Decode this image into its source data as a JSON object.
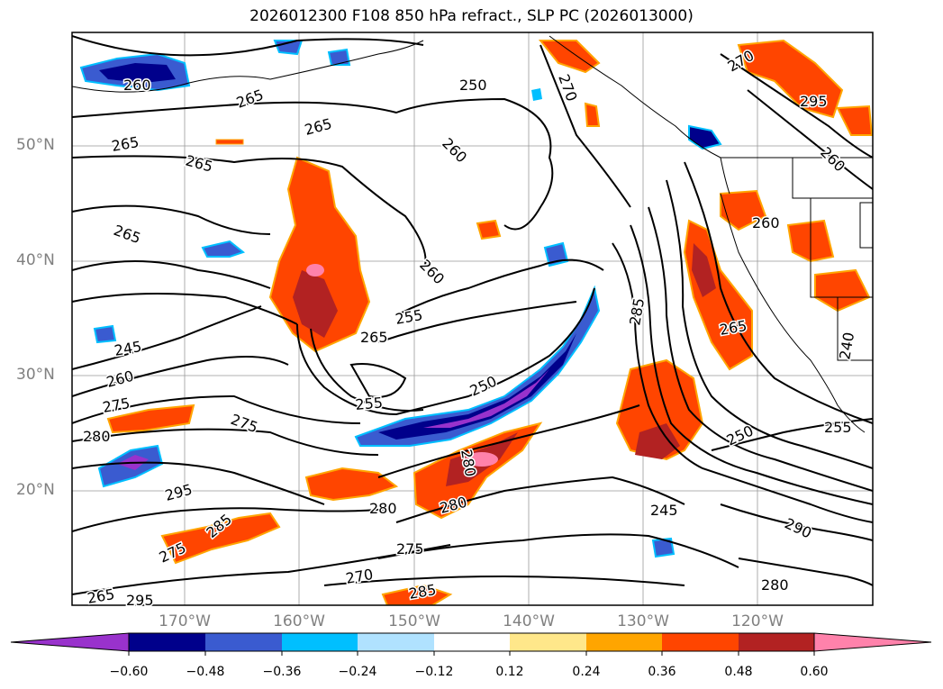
{
  "title": "2026012300 F108 850 hPa refract., SLP PC (2026013000)",
  "lat_labels": [
    "50°N",
    "40°N",
    "30°N",
    "20°N"
  ],
  "lon_labels": [
    "170°W",
    "160°W",
    "150°W",
    "140°W",
    "130°W",
    "120°W"
  ],
  "colorbar": {
    "ticks": [
      "−0.60",
      "−0.48",
      "−0.36",
      "−0.24",
      "−0.12",
      "0.12",
      "0.24",
      "0.36",
      "0.48",
      "0.60"
    ],
    "colors": [
      "#9932CC",
      "#00008B",
      "#3A5BD0",
      "#00BFFF",
      "#B0E2FF",
      "#FFFFFF",
      "#FFE78A",
      "#FFA500",
      "#FF4500",
      "#B22222",
      "#FF82AB"
    ]
  },
  "contour_labels": [
    "260",
    "265",
    "265",
    "265",
    "265",
    "260",
    "270",
    "265",
    "260",
    "255",
    "265",
    "255",
    "250",
    "245",
    "260",
    "275",
    "280",
    "275",
    "295",
    "280",
    "285",
    "275",
    "280",
    "275",
    "265",
    "270",
    "285",
    "295",
    "280",
    "285",
    "265",
    "250",
    "245",
    "290",
    "280",
    "270",
    "295",
    "260",
    "260",
    "255",
    "240",
    "250"
  ]
}
